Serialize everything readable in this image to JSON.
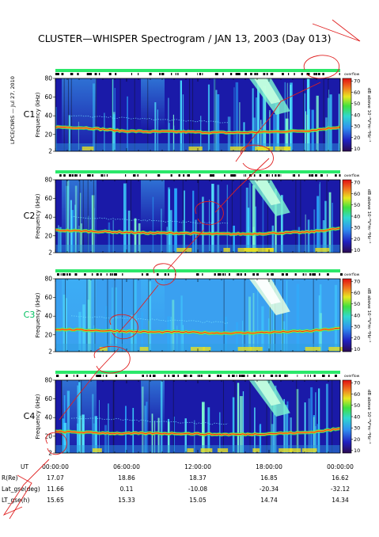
{
  "title": "CLUSTER—WHISPER Spectrogram / JAN 13, 2003 (Day 013)",
  "side_note": "LPCE/CNRS — Jul 27, 2010",
  "ylabel": "Frequency (kHz)",
  "colorbar_label": "dB above 10⁻⁸V²m⁻²Hz⁻¹",
  "colorbar_tag": "overflow",
  "colorbar_ticks": [
    "70",
    "60",
    "50",
    "40",
    "30",
    "20",
    "10"
  ],
  "y_ticks": [
    "80",
    "60",
    "40",
    "20",
    "2"
  ],
  "ephemeris": {
    "labels": [
      "UT",
      "R(Re)",
      "Lat_gse(deg)",
      "LT_gse(h)"
    ],
    "times": [
      "00:00:00",
      "06:00:00",
      "12:00:00",
      "18:00:00",
      "00:00:00"
    ],
    "R": [
      "17.07",
      "18.86",
      "18.37",
      "16.85",
      "16.62"
    ],
    "Lat": [
      "11.66",
      "0.11",
      "-10.08",
      "-20.34",
      "-32.12"
    ],
    "LT": [
      "15.65",
      "15.33",
      "15.05",
      "14.74",
      "14.34"
    ]
  },
  "panels": [
    {
      "name": "C1",
      "label_color": "#000000",
      "bg": "#1a1aa8"
    },
    {
      "name": "C2",
      "label_color": "#000000",
      "bg": "#1a1aa8"
    },
    {
      "name": "C3",
      "label_color": "#00c060",
      "bg": "#3aa0f0"
    },
    {
      "name": "C4",
      "label_color": "#000000",
      "bg": "#1a1aa8"
    }
  ],
  "chart_data": {
    "type": "heatmap",
    "x_range": [
      "00:00:00",
      "00:00:00"
    ],
    "x_ticks": [
      "00:00:00",
      "06:00:00",
      "12:00:00",
      "18:00:00",
      "00:00:00"
    ],
    "ylim": [
      2,
      80
    ],
    "y_ticks": [
      80,
      60,
      40,
      20,
      2
    ],
    "colorbar_range": [
      10,
      70
    ],
    "colorbar_ticks": [
      70,
      60,
      50,
      40,
      30,
      20,
      10
    ],
    "series": [
      {
        "name": "C1",
        "plasma_line_khz": [
          28,
          27,
          24,
          23,
          23,
          22,
          22,
          23,
          24,
          28
        ]
      },
      {
        "name": "C2",
        "plasma_line_khz": [
          26,
          25,
          24,
          23,
          23,
          22,
          22,
          23,
          24,
          28
        ]
      },
      {
        "name": "C3",
        "plasma_line_khz": [
          26,
          25,
          24,
          23,
          23,
          22,
          22,
          23,
          24,
          27
        ]
      },
      {
        "name": "C4",
        "plasma_line_khz": [
          25,
          24,
          23,
          23,
          23,
          22,
          22,
          23,
          24,
          28
        ]
      }
    ],
    "grid": false,
    "colors": {
      "bar_top": "#2be86a",
      "bar_dark": "#000000",
      "sketch": "#e02020"
    }
  }
}
